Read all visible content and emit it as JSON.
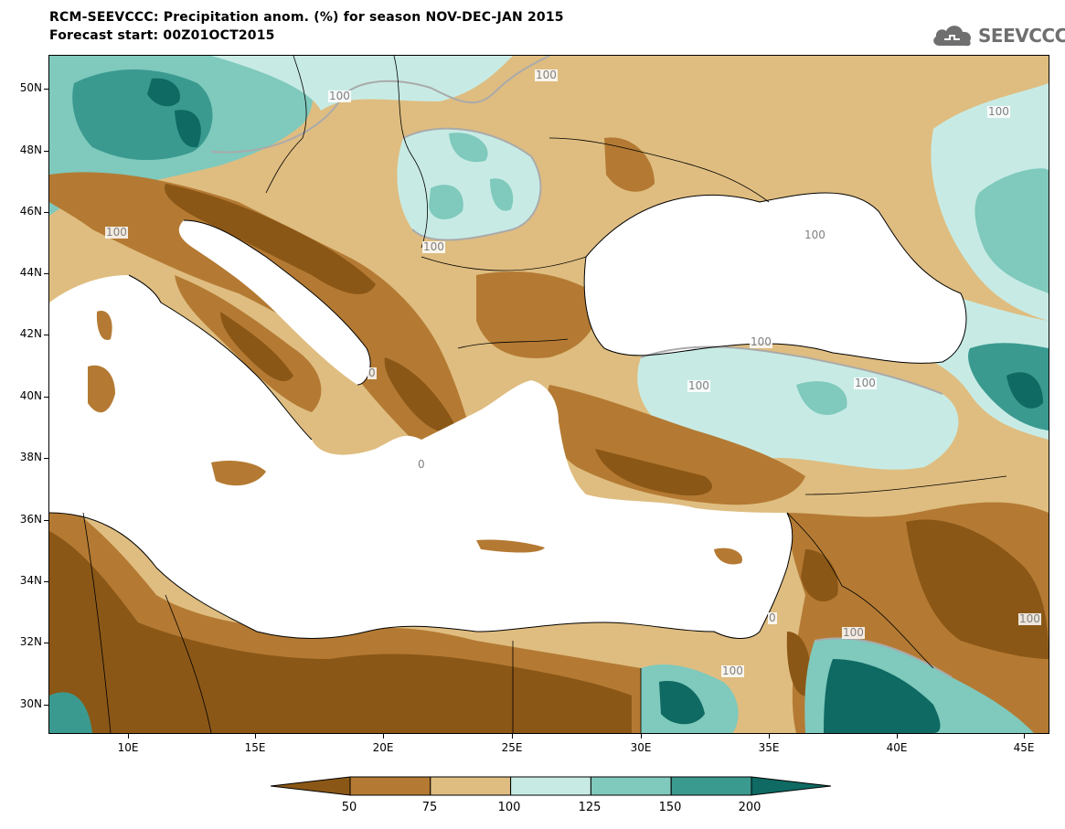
{
  "header": {
    "title_line1": "RCM-SEEVCCC: Precipitation anom. (%) for season NOV-DEC-JAN 2015",
    "title_line2": "Forecast start: 00Z01OCT2015"
  },
  "logo": {
    "text": "SEEVCCC",
    "icon": "cloud-icon"
  },
  "map": {
    "lat_labels": [
      "50N",
      "48N",
      "46N",
      "44N",
      "42N",
      "40N",
      "38N",
      "36N",
      "34N",
      "32N",
      "30N"
    ],
    "lon_labels": [
      "10E",
      "15E",
      "20E",
      "25E",
      "30E",
      "35E",
      "40E",
      "45E"
    ],
    "contour_labels": [
      "100",
      "100",
      "100",
      "100",
      "100",
      "100",
      "100",
      "100",
      "100",
      "100",
      "100",
      "100",
      "0",
      "0",
      "0"
    ]
  },
  "legend": {
    "ticks": [
      "50",
      "75",
      "100",
      "125",
      "150",
      "200"
    ],
    "colors": [
      "#8b5716",
      "#b47a33",
      "#dfbd80",
      "#c7ebe4",
      "#7fc9bd",
      "#3b9a90",
      "#0e6a62"
    ]
  }
}
